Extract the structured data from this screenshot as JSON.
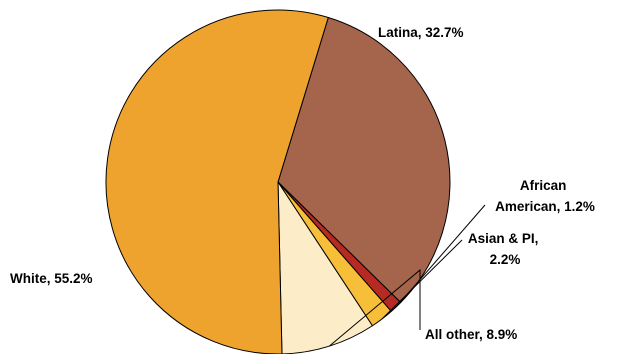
{
  "chart_data": {
    "type": "pie",
    "title": "",
    "slices": [
      {
        "label": "Latina, 32.7%",
        "value": 32.7,
        "color": "#A5644C"
      },
      {
        "label": "African American, 1.2%",
        "value": 1.2,
        "color": "#B52A22"
      },
      {
        "label": "Asian & PI, 2.2%",
        "value": 2.2,
        "color": "#F7BE3A"
      },
      {
        "label": "All other, 8.9%",
        "value": 8.9,
        "color": "#FCEDC8"
      },
      {
        "label": "White, 55.2%",
        "value": 55.2,
        "color": "#EEA32F"
      }
    ],
    "label_lines": [
      [
        "Latina, 32.7%"
      ],
      [
        "African",
        "American, 1.2%"
      ],
      [
        "Asian & PI,",
        "2.2%"
      ],
      [
        "All other, 8.9%"
      ],
      [
        "White, 55.2%"
      ]
    ]
  }
}
